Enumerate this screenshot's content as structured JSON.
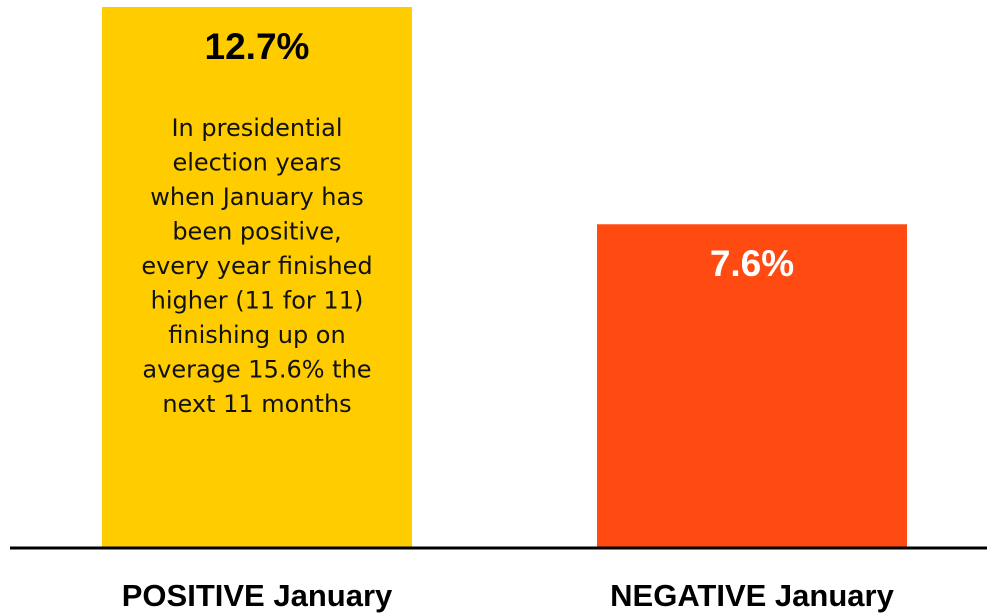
{
  "chart_data": {
    "type": "bar",
    "categories": [
      "POSITIVE January",
      "NEGATIVE January"
    ],
    "values": [
      12.7,
      7.6
    ],
    "value_labels": [
      "12.7%",
      "7.6%"
    ],
    "colors": [
      "#ffcc00",
      "#ff4a12"
    ],
    "value_label_colors": [
      "#000000",
      "#ffffff"
    ],
    "ylim": [
      0,
      12.7
    ],
    "annotation": [
      "In presidential",
      "election years",
      "when January has",
      "been positive,",
      "every year finished",
      "higher (11 for 11)",
      "finishing up on",
      "average 15.6% the",
      "next 11 months"
    ]
  }
}
